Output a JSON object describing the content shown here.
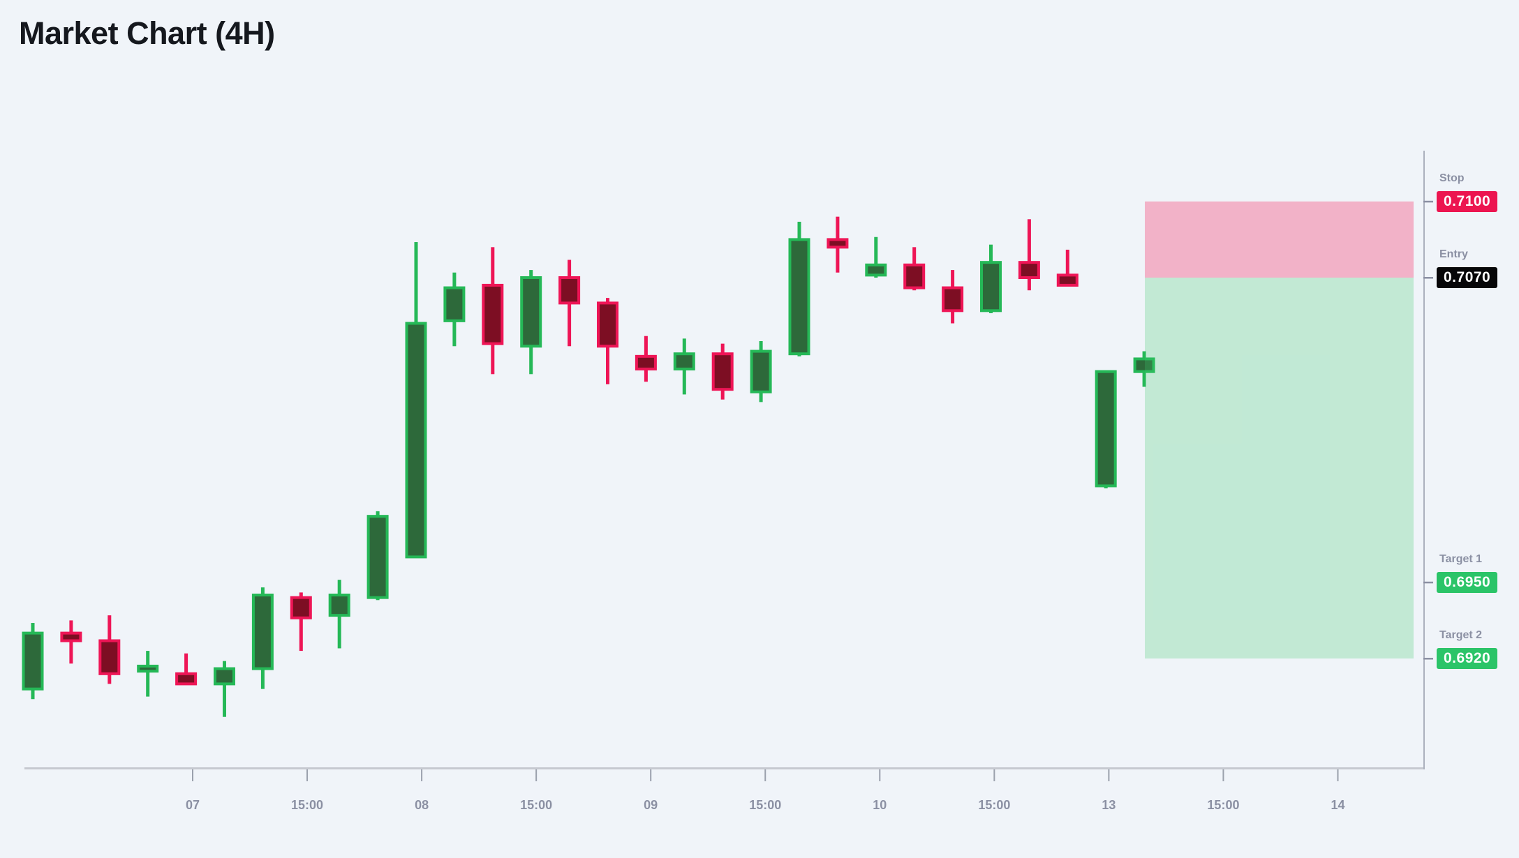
{
  "title": "Market Chart (4H)",
  "colors": {
    "background": "#f0f4f9",
    "bull_body": "#2d693a",
    "bull_accent": "#25b857",
    "bear_body": "#7d0e23",
    "bear_accent": "#ee1556",
    "stop_zone_fill": "rgba(250,25,85,0.30)",
    "profit_zone_fill": "rgba(60,200,110,0.26)",
    "badge_stop_bg": "#ec1550",
    "badge_entry_bg": "#060608",
    "badge_target_bg": "#2bc468",
    "label_text": "#8b90a3",
    "x_label_text": "#8b90a3",
    "axis_line_h": "#c6c9d0",
    "axis_line_v": "#abb0bd",
    "tick_color": "#9aa0ac"
  },
  "levels": [
    {
      "id": "stop",
      "label": "Stop",
      "value": "0.7100",
      "price": 0.71
    },
    {
      "id": "entry",
      "label": "Entry",
      "value": "0.7070",
      "price": 0.707
    },
    {
      "id": "target1",
      "label": "Target 1",
      "value": "0.6950",
      "price": 0.695
    },
    {
      "id": "target2",
      "label": "Target 2",
      "value": "0.6920",
      "price": 0.692
    }
  ],
  "x_axis": {
    "tick_labels": [
      "07",
      "15:00",
      "08",
      "15:00",
      "09",
      "15:00",
      "10",
      "15:00",
      "13",
      "15:00",
      "14"
    ]
  },
  "chart_data": {
    "type": "candlestick",
    "title": "Market Chart (4H)",
    "timeframe": "4H",
    "grid": false,
    "legend": "none",
    "x_tick_labels": [
      "07",
      "15:00",
      "08",
      "15:00",
      "09",
      "15:00",
      "10",
      "15:00",
      "13",
      "15:00",
      "14"
    ],
    "y_visible_range": [
      0.689,
      0.7105
    ],
    "candles": [
      {
        "o": 0.6908,
        "h": 0.6934,
        "l": 0.6904,
        "c": 0.693
      },
      {
        "o": 0.693,
        "h": 0.6935,
        "l": 0.6918,
        "c": 0.6927
      },
      {
        "o": 0.6927,
        "h": 0.6937,
        "l": 0.691,
        "c": 0.6914
      },
      {
        "o": 0.6915,
        "h": 0.6923,
        "l": 0.6905,
        "c": 0.6917
      },
      {
        "o": 0.6914,
        "h": 0.6922,
        "l": 0.691,
        "c": 0.691
      },
      {
        "o": 0.691,
        "h": 0.6919,
        "l": 0.6897,
        "c": 0.6916
      },
      {
        "o": 0.6916,
        "h": 0.6948,
        "l": 0.6908,
        "c": 0.6945
      },
      {
        "o": 0.6944,
        "h": 0.6946,
        "l": 0.6923,
        "c": 0.6936
      },
      {
        "o": 0.6937,
        "h": 0.6951,
        "l": 0.6924,
        "c": 0.6945
      },
      {
        "o": 0.6944,
        "h": 0.6978,
        "l": 0.6943,
        "c": 0.6976
      },
      {
        "o": 0.696,
        "h": 0.7084,
        "l": 0.696,
        "c": 0.7052
      },
      {
        "o": 0.7053,
        "h": 0.7072,
        "l": 0.7043,
        "c": 0.7066
      },
      {
        "o": 0.7067,
        "h": 0.7082,
        "l": 0.7032,
        "c": 0.7044
      },
      {
        "o": 0.7043,
        "h": 0.7073,
        "l": 0.7032,
        "c": 0.707
      },
      {
        "o": 0.707,
        "h": 0.7077,
        "l": 0.7043,
        "c": 0.706
      },
      {
        "o": 0.706,
        "h": 0.7062,
        "l": 0.7028,
        "c": 0.7043
      },
      {
        "o": 0.7039,
        "h": 0.7047,
        "l": 0.7029,
        "c": 0.7034
      },
      {
        "o": 0.7034,
        "h": 0.7046,
        "l": 0.7024,
        "c": 0.704
      },
      {
        "o": 0.704,
        "h": 0.7044,
        "l": 0.7022,
        "c": 0.7026
      },
      {
        "o": 0.7025,
        "h": 0.7045,
        "l": 0.7021,
        "c": 0.7041
      },
      {
        "o": 0.704,
        "h": 0.7092,
        "l": 0.7039,
        "c": 0.7085
      },
      {
        "o": 0.7085,
        "h": 0.7094,
        "l": 0.7072,
        "c": 0.7082
      },
      {
        "o": 0.7071,
        "h": 0.7086,
        "l": 0.707,
        "c": 0.7075
      },
      {
        "o": 0.7075,
        "h": 0.7082,
        "l": 0.7065,
        "c": 0.7066
      },
      {
        "o": 0.7066,
        "h": 0.7073,
        "l": 0.7052,
        "c": 0.7057
      },
      {
        "o": 0.7057,
        "h": 0.7083,
        "l": 0.7056,
        "c": 0.7076
      },
      {
        "o": 0.7076,
        "h": 0.7093,
        "l": 0.7065,
        "c": 0.707
      },
      {
        "o": 0.7071,
        "h": 0.7081,
        "l": 0.7067,
        "c": 0.7067
      },
      {
        "o": 0.6988,
        "h": 0.7033,
        "l": 0.6987,
        "c": 0.7033
      },
      {
        "o": 0.7033,
        "h": 0.7041,
        "l": 0.7027,
        "c": 0.7038
      }
    ],
    "trade_levels": {
      "stop": 0.71,
      "entry": 0.707,
      "target1": 0.695,
      "target2": 0.692
    },
    "zones": [
      {
        "name": "stop-loss-zone",
        "from": 0.71,
        "to": 0.707
      },
      {
        "name": "take-profit-zone",
        "from": 0.707,
        "to": 0.692
      }
    ]
  }
}
